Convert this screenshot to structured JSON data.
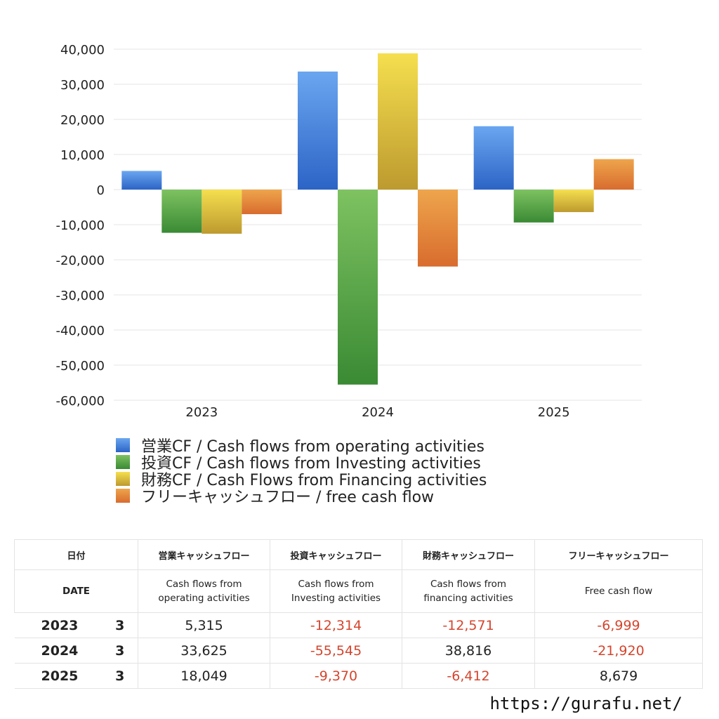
{
  "colors": {
    "operating": [
      "#6aa6f0",
      "#2c64c6"
    ],
    "investing": [
      "#7ec261",
      "#3a8a34"
    ],
    "financing": [
      "#f5df4f",
      "#bd9a2f"
    ],
    "free": [
      "#eea54c",
      "#d86c2e"
    ],
    "negative_text": "#d4452e"
  },
  "chart_data": {
    "type": "bar",
    "categories": [
      "2023",
      "2024",
      "2025"
    ],
    "series": [
      {
        "name": "営業CF / Cash flows from operating activities",
        "key": "operating",
        "values": [
          5315,
          33625,
          18049
        ]
      },
      {
        "name": "投資CF / Cash flows from Investing activities",
        "key": "investing",
        "values": [
          -12314,
          -55545,
          -9370
        ]
      },
      {
        "name": "財務CF / Cash Flows from Financing activities",
        "key": "financing",
        "values": [
          -12571,
          38816,
          -6412
        ]
      },
      {
        "name": "フリーキャッシュフロー / free cash flow",
        "key": "free",
        "values": [
          -6999,
          -21920,
          8679
        ]
      }
    ],
    "ylim": [
      -60000,
      40000
    ],
    "yticks": [
      40000,
      30000,
      20000,
      10000,
      0,
      -10000,
      -20000,
      -30000,
      -40000,
      -50000,
      -60000
    ],
    "ytick_labels": [
      "40,000",
      "30,000",
      "20,000",
      "10,000",
      "0",
      "-10,000",
      "-20,000",
      "-30,000",
      "-40,000",
      "-50,000",
      "-60,000"
    ],
    "grid": true,
    "legend": "bottom"
  },
  "table": {
    "header_jp": {
      "date": "日付",
      "operating": "営業キャッシュフロー",
      "investing": "投資キャッシュフロー",
      "financing": "財務キャッシュフロー",
      "free": "フリーキャッシュフロー"
    },
    "header_en": {
      "date": "DATE",
      "operating_1": "Cash flows from",
      "operating_2": "operating activities",
      "investing_1": "Cash flows from",
      "investing_2": "Investing activities",
      "financing_1": "Cash flows from",
      "financing_2": "financing activities",
      "free": "Free cash flow"
    },
    "rows": [
      {
        "year": "2023",
        "month": "3",
        "operating": "5,315",
        "investing": "-12,314",
        "financing": "-12,571",
        "free": "-6,999"
      },
      {
        "year": "2024",
        "month": "3",
        "operating": "33,625",
        "investing": "-55,545",
        "financing": "38,816",
        "free": "-21,920"
      },
      {
        "year": "2025",
        "month": "3",
        "operating": "18,049",
        "investing": "-9,370",
        "financing": "-6,412",
        "free": "8,679"
      }
    ]
  },
  "footer": {
    "url": "https://gurafu.net/"
  }
}
